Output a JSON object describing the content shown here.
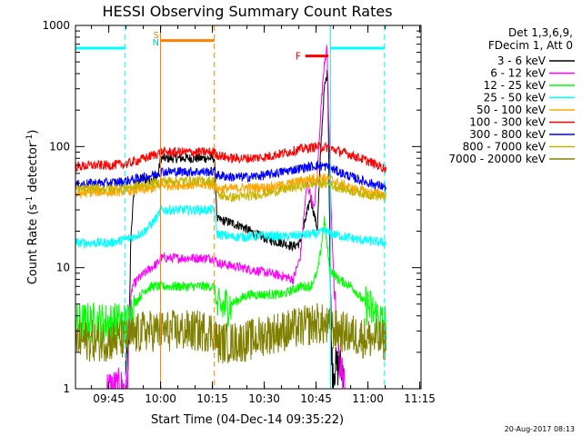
{
  "chart_data": {
    "type": "line",
    "title": "HESSI Observing Summary Count Rates",
    "xlabel": "Start Time (04-Dec-14 09:35:22)",
    "ylabel_main": "Count Rate (s",
    "ylabel_sup1": "-1",
    "ylabel_mid": " detector",
    "ylabel_sup2": "-1",
    "ylabel_end": ")",
    "yscale": "log",
    "ylim": [
      1,
      1000
    ],
    "xlim_min": [
      0,
      100
    ],
    "x_ticks": [
      {
        "label": "09:45",
        "t": 9.63
      },
      {
        "label": "10:00",
        "t": 24.63
      },
      {
        "label": "10:15",
        "t": 39.63
      },
      {
        "label": "10:30",
        "t": 54.63
      },
      {
        "label": "10:45",
        "t": 69.63
      },
      {
        "label": "11:00",
        "t": 84.63
      },
      {
        "label": "11:15",
        "t": 99.63
      }
    ],
    "y_ticks": [
      {
        "label": "1",
        "v": 1
      },
      {
        "label": "10",
        "v": 10
      },
      {
        "label": "100",
        "v": 100
      },
      {
        "label": "1000",
        "v": 1000
      }
    ],
    "legend": {
      "header": [
        "Det 1,3,6,9,",
        "FDecim 1, Att 0"
      ],
      "position": "right"
    },
    "series": [
      {
        "name": "3 - 6 keV",
        "color": "#000000",
        "points": [
          [
            14.5,
            1.5
          ],
          [
            15.5,
            2
          ],
          [
            16,
            18
          ],
          [
            17,
            45
          ],
          [
            19,
            55
          ],
          [
            21,
            52
          ],
          [
            23,
            55
          ],
          [
            24,
            60
          ],
          [
            24.6,
            80
          ],
          [
            40.2,
            80
          ],
          [
            41,
            25
          ],
          [
            44,
            24
          ],
          [
            48,
            22
          ],
          [
            52,
            19
          ],
          [
            56,
            17
          ],
          [
            60,
            16
          ],
          [
            63,
            15
          ],
          [
            65,
            16
          ],
          [
            67,
            28
          ],
          [
            68,
            38
          ],
          [
            69,
            28
          ],
          [
            70,
            21
          ],
          [
            71,
            100
          ],
          [
            72,
            300
          ],
          [
            73,
            420
          ],
          [
            73.8,
            6
          ],
          [
            74.3,
            1.5
          ],
          [
            77,
            1.5
          ],
          [
            77.5,
            1.5
          ]
        ]
      },
      {
        "name": "6 - 12 keV",
        "color": "#ff00ff",
        "points": [
          [
            9,
            1
          ],
          [
            15,
            1
          ],
          [
            15.5,
            4
          ],
          [
            16.5,
            7
          ],
          [
            18,
            8
          ],
          [
            20,
            9
          ],
          [
            22,
            10
          ],
          [
            24,
            11
          ],
          [
            24.6,
            12
          ],
          [
            40.2,
            12
          ],
          [
            41,
            11
          ],
          [
            44,
            10.5
          ],
          [
            48,
            10
          ],
          [
            52,
            9.5
          ],
          [
            56,
            9
          ],
          [
            60,
            8.5
          ],
          [
            63,
            8
          ],
          [
            65,
            12
          ],
          [
            67,
            50
          ],
          [
            68,
            40
          ],
          [
            69,
            30
          ],
          [
            70,
            60
          ],
          [
            71,
            200
          ],
          [
            72,
            500
          ],
          [
            72.8,
            650
          ],
          [
            73.5,
            100
          ],
          [
            74,
            30
          ],
          [
            75,
            5
          ],
          [
            76,
            2
          ],
          [
            78,
            1
          ]
        ]
      },
      {
        "name": "12 - 25 keV",
        "color": "#00ff00",
        "points": [
          [
            0,
            3.5
          ],
          [
            5,
            3.5
          ],
          [
            10,
            3.5
          ],
          [
            15,
            3.5
          ],
          [
            17,
            5
          ],
          [
            20,
            6.5
          ],
          [
            22,
            7
          ],
          [
            24.6,
            7
          ],
          [
            40.2,
            7
          ],
          [
            41,
            4.5
          ],
          [
            45,
            5
          ],
          [
            50,
            6
          ],
          [
            55,
            6
          ],
          [
            60,
            6
          ],
          [
            65,
            7
          ],
          [
            68,
            7
          ],
          [
            70,
            9
          ],
          [
            71,
            14
          ],
          [
            72,
            25
          ],
          [
            73.5,
            10
          ],
          [
            76,
            8
          ],
          [
            80,
            7
          ],
          [
            84,
            5
          ],
          [
            89,
            3.5
          ],
          [
            90,
            3.5
          ]
        ]
      },
      {
        "name": "25 - 50 keV",
        "color": "#00ffff",
        "points": [
          [
            0,
            16
          ],
          [
            5,
            16
          ],
          [
            10,
            16
          ],
          [
            14,
            17
          ],
          [
            17,
            18
          ],
          [
            20,
            20
          ],
          [
            22,
            23
          ],
          [
            24,
            27
          ],
          [
            24.6,
            30
          ],
          [
            40.2,
            30
          ],
          [
            41,
            19
          ],
          [
            45,
            18
          ],
          [
            50,
            18
          ],
          [
            55,
            18.5
          ],
          [
            60,
            18
          ],
          [
            65,
            18.5
          ],
          [
            70,
            19
          ],
          [
            72,
            20
          ],
          [
            74,
            19
          ],
          [
            78,
            18
          ],
          [
            82,
            17
          ],
          [
            86,
            16.5
          ],
          [
            90,
            16
          ]
        ]
      },
      {
        "name": "50 - 100 keV",
        "color": "#ffa500",
        "points": [
          [
            0,
            40
          ],
          [
            5,
            42
          ],
          [
            10,
            42
          ],
          [
            15,
            43
          ],
          [
            20,
            44
          ],
          [
            24,
            46
          ],
          [
            24.6,
            48
          ],
          [
            40.2,
            48
          ],
          [
            41,
            45
          ],
          [
            45,
            45
          ],
          [
            50,
            46
          ],
          [
            55,
            46
          ],
          [
            60,
            48
          ],
          [
            65,
            52
          ],
          [
            70,
            56
          ],
          [
            73,
            55
          ],
          [
            76,
            50
          ],
          [
            80,
            45
          ],
          [
            85,
            42
          ],
          [
            90,
            40
          ]
        ]
      },
      {
        "name": "100 - 300 keV",
        "color": "#ff0000",
        "points": [
          [
            0,
            68
          ],
          [
            5,
            70
          ],
          [
            10,
            70
          ],
          [
            15,
            72
          ],
          [
            20,
            80
          ],
          [
            24,
            88
          ],
          [
            24.6,
            90
          ],
          [
            40.2,
            90
          ],
          [
            41,
            85
          ],
          [
            45,
            80
          ],
          [
            50,
            80
          ],
          [
            55,
            82
          ],
          [
            60,
            88
          ],
          [
            65,
            95
          ],
          [
            70,
            100
          ],
          [
            73,
            98
          ],
          [
            76,
            92
          ],
          [
            80,
            85
          ],
          [
            85,
            75
          ],
          [
            90,
            65
          ]
        ]
      },
      {
        "name": "300 - 800 keV",
        "color": "#0000ff",
        "points": [
          [
            0,
            48
          ],
          [
            5,
            50
          ],
          [
            10,
            50
          ],
          [
            15,
            52
          ],
          [
            20,
            56
          ],
          [
            24,
            60
          ],
          [
            24.6,
            62
          ],
          [
            40.2,
            62
          ],
          [
            41,
            58
          ],
          [
            45,
            56
          ],
          [
            50,
            56
          ],
          [
            55,
            58
          ],
          [
            60,
            62
          ],
          [
            65,
            66
          ],
          [
            70,
            70
          ],
          [
            73,
            68
          ],
          [
            76,
            62
          ],
          [
            80,
            56
          ],
          [
            85,
            50
          ],
          [
            90,
            46
          ]
        ]
      },
      {
        "name": "800 - 7000 keV",
        "color": "#c8b400",
        "points": [
          [
            0,
            44
          ],
          [
            5,
            45
          ],
          [
            10,
            45
          ],
          [
            15,
            46
          ],
          [
            20,
            48
          ],
          [
            24,
            50
          ],
          [
            24.6,
            52
          ],
          [
            40.2,
            52
          ],
          [
            41,
            40
          ],
          [
            45,
            38
          ],
          [
            50,
            39
          ],
          [
            55,
            41
          ],
          [
            60,
            44
          ],
          [
            65,
            47
          ],
          [
            70,
            50
          ],
          [
            73,
            49
          ],
          [
            76,
            46
          ],
          [
            80,
            43
          ],
          [
            85,
            40
          ],
          [
            90,
            38
          ]
        ]
      },
      {
        "name": "7000 - 20000 keV",
        "color": "#808000",
        "points": [
          [
            0,
            2.5
          ],
          [
            5,
            2.5
          ],
          [
            10,
            2.5
          ],
          [
            15,
            2.6
          ],
          [
            20,
            3
          ],
          [
            24.6,
            3
          ],
          [
            40.2,
            3
          ],
          [
            41,
            2.4
          ],
          [
            45,
            2.4
          ],
          [
            50,
            2.5
          ],
          [
            55,
            2.8
          ],
          [
            60,
            3
          ],
          [
            65,
            3.2
          ],
          [
            70,
            3.5
          ],
          [
            73,
            3.2
          ],
          [
            76,
            3
          ],
          [
            80,
            2.8
          ],
          [
            85,
            2.6
          ],
          [
            90,
            2.5
          ]
        ]
      }
    ],
    "annotations": {
      "saa_label": "S",
      "night_label": "N",
      "flare_label": "F",
      "cyan_bars": [
        [
          0,
          14.4
        ],
        [
          73.8,
          89.4
        ]
      ],
      "cyan_bar_level": 650,
      "cyan_dashes": [
        14.4,
        89.4
      ],
      "cyan_solid": [
        73.8
      ],
      "orange_bar": [
        24.6,
        40.2
      ],
      "orange_bar_level": 750,
      "orange_solid": [
        24.6
      ],
      "orange_dashes": [
        40.2
      ],
      "flare_bar": [
        66.5,
        73.2
      ],
      "flare_bar_level": 560
    },
    "timestamp": "20-Aug-2017 08:13"
  }
}
